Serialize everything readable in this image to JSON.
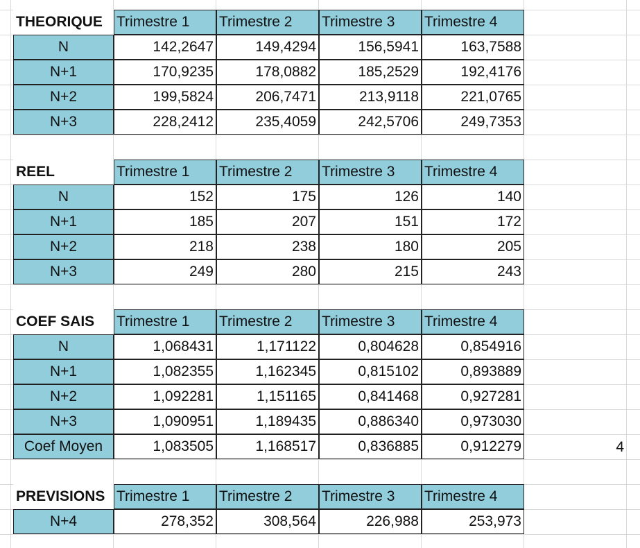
{
  "tables": [
    {
      "title": "THEORIQUE",
      "columns": [
        "Trimestre 1",
        "Trimestre 2",
        "Trimestre 3",
        "Trimestre 4"
      ],
      "rows": [
        {
          "label": "N",
          "values": [
            "142,2647",
            "149,4294",
            "156,5941",
            "163,7588"
          ]
        },
        {
          "label": "N+1",
          "values": [
            "170,9235",
            "178,0882",
            "185,2529",
            "192,4176"
          ]
        },
        {
          "label": "N+2",
          "values": [
            "199,5824",
            "206,7471",
            "213,9118",
            "221,0765"
          ]
        },
        {
          "label": "N+3",
          "values": [
            "228,2412",
            "235,4059",
            "242,5706",
            "249,7353"
          ]
        }
      ]
    },
    {
      "title": "REEL",
      "columns": [
        "Trimestre 1",
        "Trimestre 2",
        "Trimestre 3",
        "Trimestre 4"
      ],
      "rows": [
        {
          "label": "N",
          "values": [
            "152",
            "175",
            "126",
            "140"
          ]
        },
        {
          "label": "N+1",
          "values": [
            "185",
            "207",
            "151",
            "172"
          ]
        },
        {
          "label": "N+2",
          "values": [
            "218",
            "238",
            "180",
            "205"
          ]
        },
        {
          "label": "N+3",
          "values": [
            "249",
            "280",
            "215",
            "243"
          ]
        }
      ]
    },
    {
      "title": "COEF SAIS",
      "columns": [
        "Trimestre 1",
        "Trimestre 2",
        "Trimestre 3",
        "Trimestre 4"
      ],
      "rows": [
        {
          "label": "N",
          "values": [
            "1,068431",
            "1,171122",
            "0,804628",
            "0,854916"
          ]
        },
        {
          "label": "N+1",
          "values": [
            "1,082355",
            "1,162345",
            "0,815102",
            "0,893889"
          ]
        },
        {
          "label": "N+2",
          "values": [
            "1,092281",
            "1,151165",
            "0,841468",
            "0,927281"
          ]
        },
        {
          "label": "N+3",
          "values": [
            "1,090951",
            "1,189435",
            "0,886340",
            "0,973030"
          ]
        },
        {
          "label": "Coef Moyen",
          "values": [
            "1,083505",
            "1,168517",
            "0,836885",
            "0,912279"
          ]
        }
      ]
    },
    {
      "title": "PREVISIONS",
      "columns": [
        "Trimestre 1",
        "Trimestre 2",
        "Trimestre 3",
        "Trimestre 4"
      ],
      "rows": [
        {
          "label": "N+4",
          "values": [
            "278,352",
            "308,564",
            "226,988",
            "253,973"
          ]
        }
      ]
    }
  ],
  "stray_cell": "4",
  "colors": {
    "header_fill": "#92cddc",
    "gridline": "#d9d9d9",
    "border": "#222222"
  }
}
